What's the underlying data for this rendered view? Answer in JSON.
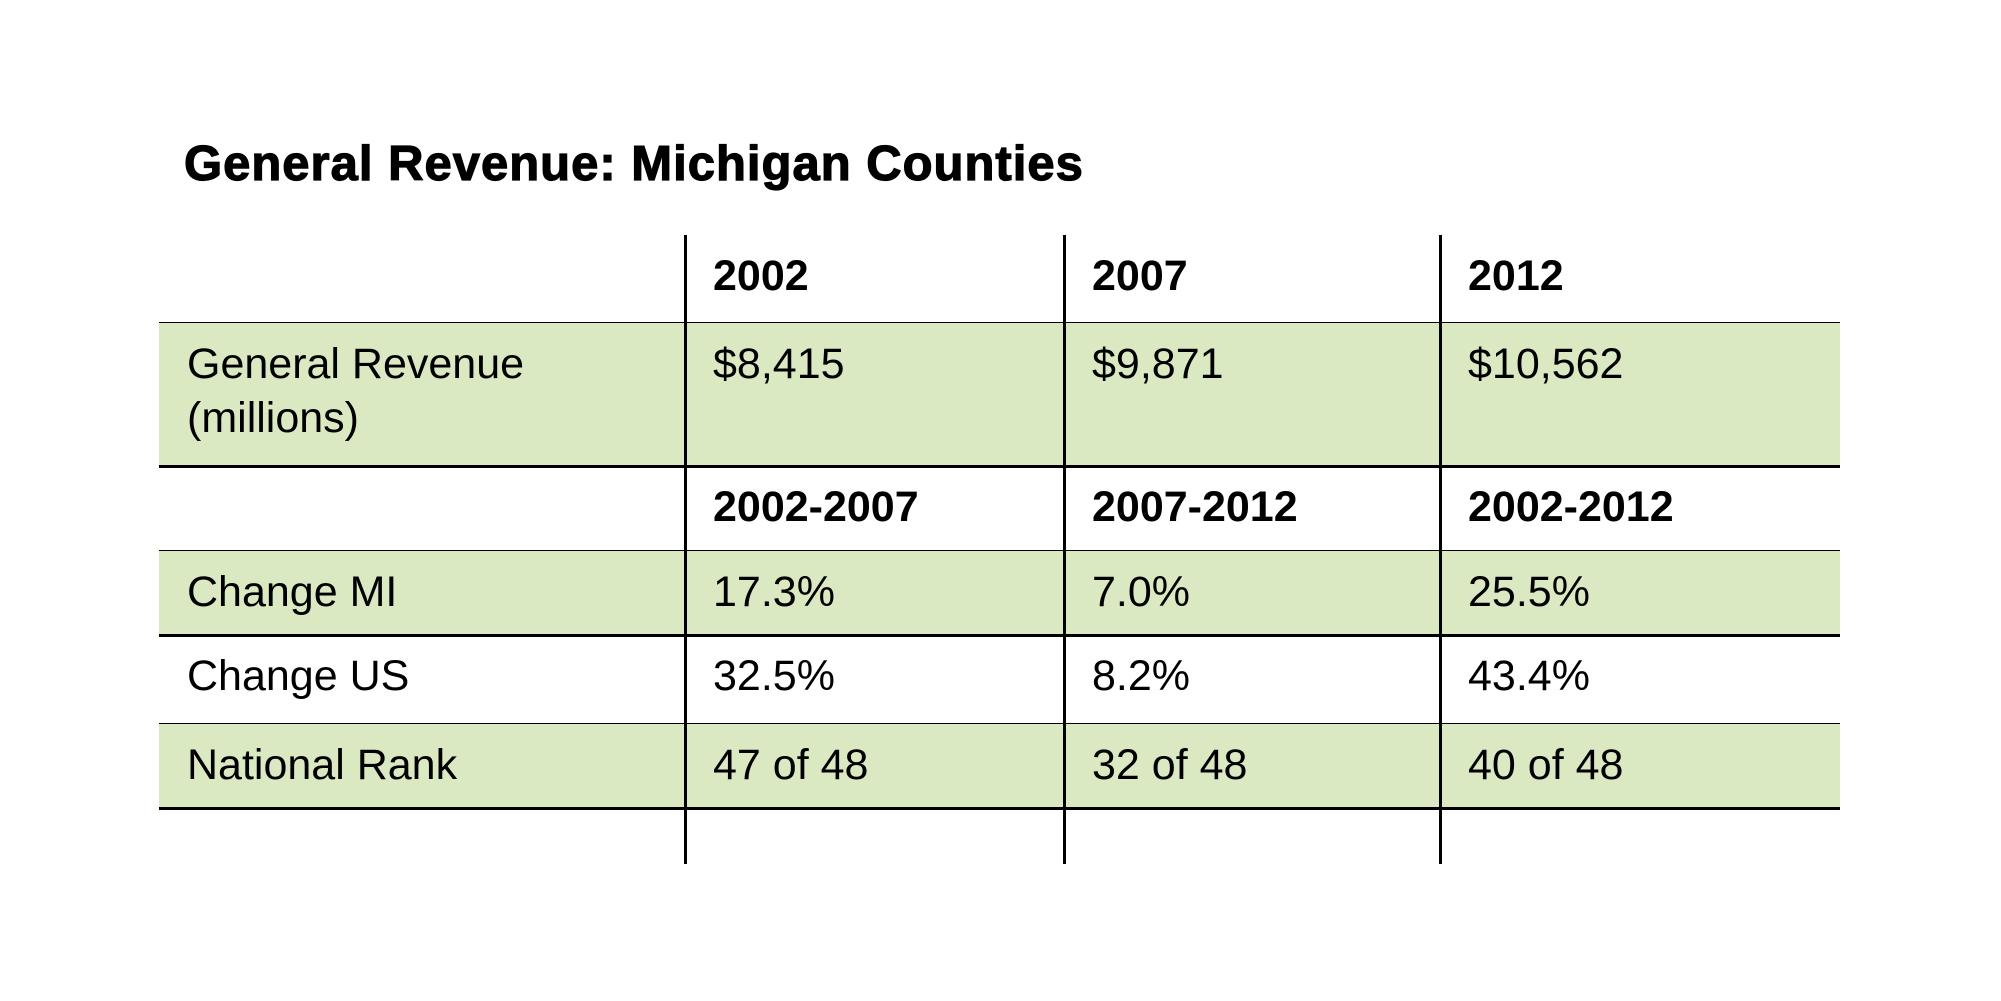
{
  "title": "General Revenue: Michigan Counties",
  "table": {
    "rows": [
      {
        "cells": [
          "2002",
          "2007",
          "2012"
        ]
      },
      {
        "label": "General Revenue (millions)",
        "cells": [
          "$8,415",
          "$9,871",
          "$10,562"
        ],
        "fill": "#dbe9c2"
      },
      {
        "cells": [
          "2002-2007",
          "2007-2012",
          "2002-2012"
        ]
      },
      {
        "label": "Change MI",
        "cells": [
          "17.3%",
          "7.0%",
          "25.5%"
        ],
        "fill": "#dbe9c2"
      },
      {
        "label": "Change US",
        "cells": [
          "32.5%",
          "8.2%",
          "43.4%"
        ]
      },
      {
        "label": "National Rank",
        "cells": [
          "47 of 48",
          "32 of 48",
          "40 of 48"
        ],
        "fill": "#dbe9c2"
      }
    ]
  }
}
